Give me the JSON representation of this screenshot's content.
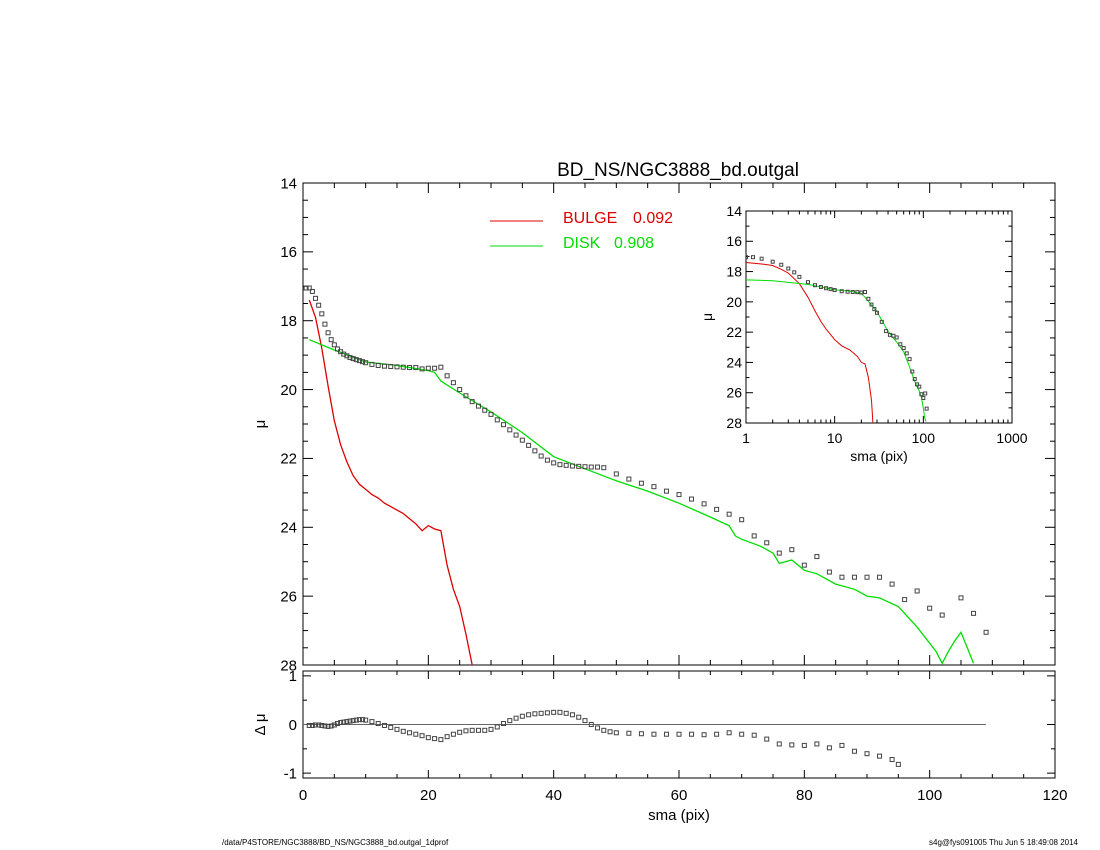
{
  "colors": {
    "bulge": "#dd0000",
    "disk": "#00dd00",
    "data": "#444444",
    "axis": "#000000",
    "zero_line": "#666666"
  },
  "footer": {
    "left": "/data/P4STORE/NGC3888/BD_NS/NGC3888_bd.outgal_1dprof",
    "right": "s4g@fys091005  Thu Jun  5 18:49:08 2014"
  },
  "chart_data": [
    {
      "id": "main",
      "type": "line",
      "title": "BD_NS/NGC3888_bd.outgal",
      "xlabel": "",
      "ylabel": "μ",
      "xlim": [
        0,
        120
      ],
      "ylim": [
        28,
        14
      ],
      "y_inverted": true,
      "x_ticks": [
        0,
        20,
        40,
        60,
        80,
        100,
        120
      ],
      "y_ticks": [
        14,
        16,
        18,
        20,
        22,
        24,
        26,
        28
      ],
      "legend": {
        "placement": "top-center",
        "entries": [
          {
            "name": "BULGE",
            "value": "0.092",
            "color": "#dd0000"
          },
          {
            "name": "DISK",
            "value": "0.908",
            "color": "#00dd00"
          }
        ]
      },
      "series": [
        {
          "name": "BULGE",
          "color": "#dd0000",
          "x": [
            1,
            2,
            3,
            4,
            5,
            6,
            7,
            8,
            9,
            10,
            11,
            12,
            13,
            14,
            15,
            16,
            17,
            18,
            19,
            20,
            21,
            22,
            23,
            24,
            25,
            26,
            27
          ],
          "y": [
            17.4,
            17.9,
            18.8,
            19.9,
            20.9,
            21.6,
            22.1,
            22.5,
            22.75,
            22.9,
            23.05,
            23.15,
            23.3,
            23.4,
            23.5,
            23.6,
            23.75,
            23.9,
            24.1,
            23.95,
            24.05,
            24.1,
            25.1,
            25.8,
            26.3,
            27.1,
            28.0
          ]
        },
        {
          "name": "DISK",
          "color": "#00dd00",
          "x": [
            1,
            5,
            10,
            15,
            20,
            21,
            22,
            25,
            30,
            35,
            40,
            45,
            50,
            55,
            60,
            65,
            68,
            69,
            70,
            73,
            75,
            76,
            78,
            80,
            82,
            85,
            88,
            90,
            92,
            95,
            98,
            101,
            102,
            103,
            104,
            105,
            106,
            107
          ],
          "y": [
            18.55,
            18.85,
            19.2,
            19.3,
            19.45,
            19.5,
            19.75,
            20.1,
            20.65,
            21.25,
            21.95,
            22.3,
            22.65,
            22.95,
            23.3,
            23.7,
            23.95,
            24.25,
            24.35,
            24.55,
            24.75,
            25.05,
            24.95,
            25.25,
            25.35,
            25.65,
            25.8,
            26.0,
            26.05,
            26.3,
            26.9,
            27.6,
            27.95,
            27.6,
            27.3,
            27.05,
            27.5,
            27.95
          ]
        },
        {
          "name": "data",
          "color": "#444444",
          "x": [
            0.5,
            1,
            1.5,
            2,
            2.5,
            3,
            3.5,
            4,
            4.5,
            5,
            5.5,
            6,
            6.5,
            7,
            7.5,
            8,
            8.5,
            9,
            9.5,
            10,
            11,
            12,
            13,
            14,
            15,
            16,
            17,
            18,
            19,
            20,
            21,
            22,
            23,
            24,
            25,
            26,
            27,
            28,
            29,
            30,
            31,
            32,
            33,
            34,
            35,
            36,
            37,
            38,
            39,
            40,
            41,
            42,
            43,
            44,
            45,
            46,
            47,
            48,
            50,
            52,
            54,
            56,
            58,
            60,
            62,
            64,
            66,
            68,
            70,
            72,
            74,
            76,
            78,
            80,
            82,
            84,
            86,
            88,
            90,
            92,
            94,
            96,
            98,
            100,
            102,
            105,
            107,
            109
          ],
          "y": [
            17.05,
            17.05,
            17.15,
            17.35,
            17.55,
            17.8,
            18.1,
            18.35,
            18.55,
            18.7,
            18.82,
            18.9,
            18.97,
            19.02,
            19.07,
            19.1,
            19.13,
            19.16,
            19.19,
            19.22,
            19.27,
            19.3,
            19.32,
            19.33,
            19.34,
            19.35,
            19.36,
            19.36,
            19.4,
            19.38,
            19.38,
            19.35,
            19.6,
            19.8,
            20.0,
            20.18,
            20.35,
            20.48,
            20.6,
            20.72,
            20.88,
            21.02,
            21.17,
            21.32,
            21.47,
            21.62,
            21.78,
            21.93,
            22.05,
            22.13,
            22.18,
            22.2,
            22.22,
            22.23,
            22.24,
            22.25,
            22.25,
            22.27,
            22.45,
            22.6,
            22.72,
            22.82,
            22.95,
            23.05,
            23.18,
            23.32,
            23.48,
            23.62,
            23.78,
            24.25,
            24.45,
            24.75,
            24.65,
            25.1,
            24.85,
            25.3,
            25.45,
            25.45,
            25.45,
            25.45,
            25.65,
            26.1,
            25.85,
            26.35,
            26.55,
            26.05,
            26.5,
            27.05
          ]
        }
      ]
    },
    {
      "id": "residual",
      "type": "scatter",
      "xlabel": "sma (pix)",
      "ylabel": "Δ μ",
      "xlim": [
        0,
        120
      ],
      "ylim": [
        -1.1,
        1.1
      ],
      "x_ticks": [
        0,
        20,
        40,
        60,
        80,
        100,
        120
      ],
      "y_ticks": [
        -1,
        0,
        1
      ],
      "zero_line_xlim": [
        0,
        109
      ],
      "series": [
        {
          "name": "residual",
          "x": [
            1,
            1.5,
            2,
            2.5,
            3,
            3.5,
            4,
            4.5,
            5,
            5.5,
            6,
            6.5,
            7,
            7.5,
            8,
            8.5,
            9,
            9.5,
            10,
            11,
            12,
            13,
            14,
            15,
            16,
            17,
            18,
            19,
            20,
            21,
            22,
            23,
            24,
            25,
            26,
            27,
            28,
            29,
            30,
            31,
            32,
            33,
            34,
            35,
            36,
            37,
            38,
            39,
            40,
            41,
            42,
            43,
            44,
            45,
            46,
            47,
            48,
            49,
            50,
            52,
            54,
            56,
            58,
            60,
            62,
            64,
            66,
            68,
            70,
            72,
            74,
            76,
            78,
            80,
            82,
            84,
            86,
            88,
            90,
            92,
            94,
            95
          ],
          "y": [
            -0.02,
            -0.02,
            -0.01,
            -0.01,
            -0.02,
            -0.03,
            -0.04,
            -0.03,
            -0.01,
            0.02,
            0.04,
            0.05,
            0.06,
            0.07,
            0.08,
            0.09,
            0.1,
            0.1,
            0.09,
            0.06,
            0.02,
            -0.02,
            -0.06,
            -0.1,
            -0.14,
            -0.17,
            -0.2,
            -0.23,
            -0.27,
            -0.29,
            -0.31,
            -0.25,
            -0.2,
            -0.16,
            -0.13,
            -0.12,
            -0.12,
            -0.12,
            -0.1,
            -0.05,
            0.02,
            0.08,
            0.13,
            0.17,
            0.2,
            0.22,
            0.23,
            0.24,
            0.25,
            0.25,
            0.23,
            0.2,
            0.15,
            0.08,
            0.0,
            -0.07,
            -0.12,
            -0.15,
            -0.17,
            -0.18,
            -0.19,
            -0.2,
            -0.2,
            -0.2,
            -0.2,
            -0.21,
            -0.2,
            -0.17,
            -0.2,
            -0.22,
            -0.3,
            -0.4,
            -0.42,
            -0.43,
            -0.4,
            -0.48,
            -0.43,
            -0.55,
            -0.6,
            -0.65,
            -0.72,
            -0.82
          ]
        }
      ]
    },
    {
      "id": "inset",
      "type": "line",
      "xlabel": "sma (pix)",
      "ylabel": "μ",
      "x_scale": "log",
      "xlim": [
        1,
        1000
      ],
      "ylim": [
        28,
        14
      ],
      "y_inverted": true,
      "x_ticks": [
        1,
        10,
        100,
        1000
      ],
      "y_ticks": [
        14,
        16,
        18,
        20,
        22,
        24,
        26,
        28
      ],
      "series": [
        {
          "name": "BULGE",
          "color": "#dd0000",
          "x": [
            1,
            1.5,
            2,
            2.5,
            3,
            4,
            5,
            6,
            7,
            8,
            10,
            12,
            15,
            18,
            20,
            21,
            22,
            24,
            26,
            27
          ],
          "y": [
            17.4,
            17.5,
            17.6,
            17.85,
            18.1,
            18.8,
            19.7,
            20.6,
            21.3,
            21.8,
            22.5,
            22.9,
            23.2,
            23.6,
            24.0,
            24.05,
            24.1,
            25.0,
            26.5,
            28.0
          ]
        },
        {
          "name": "DISK",
          "color": "#00dd00",
          "x": [
            1,
            2,
            5,
            10,
            15,
            20,
            22,
            30,
            40,
            50,
            60,
            70,
            80,
            90,
            95,
            100,
            103,
            107
          ],
          "y": [
            18.55,
            18.6,
            18.85,
            19.2,
            19.3,
            19.45,
            19.7,
            20.65,
            21.95,
            22.65,
            23.3,
            24.3,
            25.25,
            25.9,
            26.3,
            27.0,
            27.6,
            27.9
          ]
        },
        {
          "name": "data",
          "color": "#444444",
          "x": [
            1,
            1.2,
            1.5,
            2,
            2.5,
            3,
            3.5,
            4,
            5,
            6,
            7,
            8,
            9,
            10,
            12,
            14,
            16,
            18,
            20,
            22,
            24,
            26,
            28,
            30,
            34,
            38,
            42,
            46,
            50,
            55,
            60,
            65,
            70,
            75,
            80,
            85,
            90,
            95,
            100,
            105,
            109
          ],
          "y": [
            17.05,
            17.05,
            17.15,
            17.35,
            17.55,
            17.8,
            18.05,
            18.35,
            18.7,
            18.9,
            19.02,
            19.1,
            19.16,
            19.22,
            19.3,
            19.33,
            19.35,
            19.36,
            19.38,
            19.35,
            19.8,
            20.18,
            20.48,
            20.72,
            21.32,
            21.93,
            22.18,
            22.24,
            22.35,
            22.8,
            23.05,
            23.4,
            23.78,
            24.6,
            25.1,
            25.45,
            25.6,
            26.1,
            26.35,
            26.05,
            27.05
          ]
        }
      ]
    }
  ]
}
